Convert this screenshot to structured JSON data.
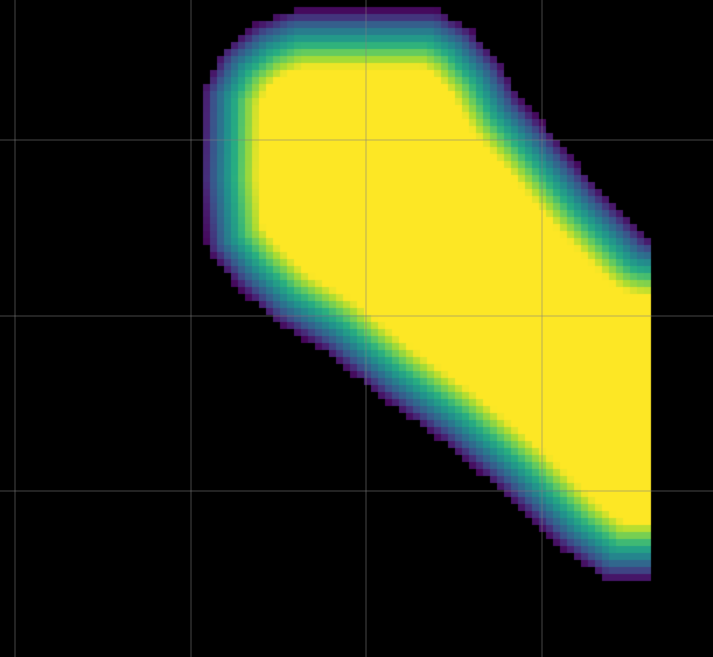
{
  "chart_data": {
    "type": "heatmap",
    "colormap": "viridis",
    "background_color": "#000000",
    "gridline_color": "#808080",
    "grid": true,
    "show_axes": false,
    "value_range": [
      0,
      1
    ],
    "shape": "tilted blob: narrow rounded top-left lobe widening toward lower-right, cut off by a vertical edge on the right",
    "edge_colors": [
      "#440154",
      "#3b528b",
      "#21918c",
      "#5ec962",
      "#fde725"
    ]
  }
}
